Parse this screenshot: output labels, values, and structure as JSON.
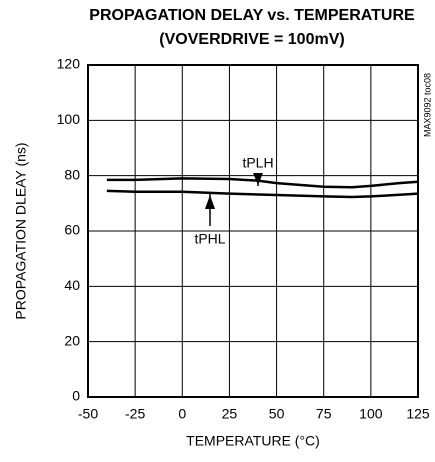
{
  "chart_data": {
    "type": "line",
    "title": "PROPAGATION DELAY vs. TEMPERATURE",
    "subtitle": "(VOVERDRIVE = 100mV)",
    "x_label": "TEMPERATURE (°C)",
    "y_label": "PROPAGATION DLEAY (ns)",
    "side_note": "MAX9092 toc08",
    "xlim": [
      -50,
      125
    ],
    "xticks": [
      -50,
      -25,
      0,
      25,
      50,
      75,
      100,
      125
    ],
    "ylim": [
      0,
      120
    ],
    "yticks": [
      0,
      20,
      40,
      60,
      80,
      100,
      120
    ],
    "grid": true,
    "series": [
      {
        "name": "tPLH",
        "color": "#000000",
        "x": [
          -40,
          -25,
          0,
          25,
          40,
          50,
          75,
          90,
          100,
          115,
          125
        ],
        "values": [
          78.5,
          78.5,
          79,
          78.8,
          78.2,
          77.3,
          76,
          75.8,
          76.3,
          77.3,
          77.8
        ]
      },
      {
        "name": "tPHL",
        "color": "#000000",
        "x": [
          -40,
          -25,
          0,
          25,
          50,
          75,
          90,
          100,
          125
        ],
        "values": [
          74.5,
          74.2,
          74.2,
          73.5,
          73,
          72.5,
          72.3,
          72.5,
          73.5
        ]
      }
    ]
  }
}
